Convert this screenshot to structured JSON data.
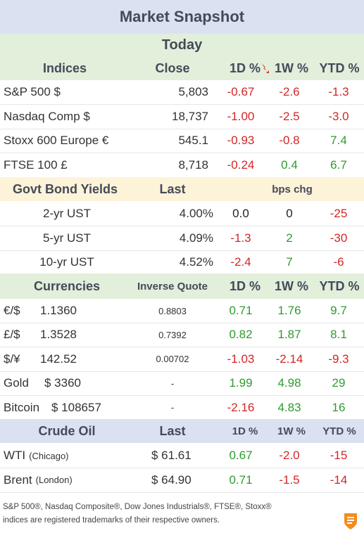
{
  "title": "Market Snapshot",
  "colors": {
    "negative": "#d42626",
    "positive": "#2f9b2f",
    "header_blue": "#dae1f1",
    "header_green": "#e1efdb",
    "header_yellow": "#fdf3d8"
  },
  "today_label": "Today",
  "indices": {
    "headers": {
      "name": "Indices",
      "close": "Close",
      "d1": "1D %",
      "w1": "1W %",
      "ytd": "YTD %"
    },
    "sort_icon": "sort-down-arrow-icon",
    "rows": [
      {
        "name": "S&P 500  $",
        "close": "5,803",
        "d1": "-0.67",
        "w1": "-2.6",
        "ytd": "-1.3"
      },
      {
        "name": "Nasdaq Comp  $",
        "close": "18,737",
        "d1": "-1.00",
        "w1": "-2.5",
        "ytd": "-3.0"
      },
      {
        "name": "Stoxx 600 Europe  €",
        "close": "545.1",
        "d1": "-0.93",
        "w1": "-0.8",
        "ytd": "7.4"
      },
      {
        "name": "FTSE 100  £",
        "close": "8,718",
        "d1": "-0.24",
        "w1": "0.4",
        "ytd": "6.7"
      }
    ]
  },
  "bonds": {
    "headers": {
      "name": "Govt Bond Yields",
      "last": "Last",
      "chg": "bps chg"
    },
    "rows": [
      {
        "name": "2-yr UST",
        "last": "4.00%",
        "d1": "0.0",
        "w1": "0",
        "ytd": "-25"
      },
      {
        "name": "5-yr UST",
        "last": "4.09%",
        "d1": "-1.3",
        "w1": "2",
        "ytd": "-30"
      },
      {
        "name": "10-yr UST",
        "last": "4.52%",
        "d1": "-2.4",
        "w1": "7",
        "ytd": "-6"
      }
    ]
  },
  "currencies": {
    "headers": {
      "name": "Currencies",
      "inverse": "Inverse Quote",
      "d1": "1D %",
      "w1": "1W %",
      "ytd": "YTD %"
    },
    "rows": [
      {
        "name": "€/$",
        "quote": "1.1360",
        "inverse": "0.8803",
        "d1": "0.71",
        "w1": "1.76",
        "ytd": "9.7"
      },
      {
        "name": "£/$",
        "quote": "1.3528",
        "inverse": "0.7392",
        "d1": "0.82",
        "w1": "1.87",
        "ytd": "8.1"
      },
      {
        "name": "$/¥",
        "quote": "142.52",
        "inverse": "0.00702",
        "d1": "-1.03",
        "w1": "-2.14",
        "ytd": "-9.3"
      },
      {
        "name": "Gold",
        "quote": "$ 3360",
        "inverse": "-",
        "d1": "1.99",
        "w1": "4.98",
        "ytd": "29"
      },
      {
        "name": "Bitcoin",
        "quote": "$ 108657",
        "inverse": "-",
        "d1": "-2.16",
        "w1": "4.83",
        "ytd": "16"
      }
    ]
  },
  "crude": {
    "headers": {
      "name": "Crude Oil",
      "last": "Last",
      "d1": "1D %",
      "w1": "1W %",
      "ytd": "YTD %"
    },
    "rows": [
      {
        "name": "WTI",
        "sub": "(Chicago)",
        "last": "$ 61.61",
        "d1": "0.67",
        "w1": "-2.0",
        "ytd": "-15"
      },
      {
        "name": "Brent",
        "sub": "(London)",
        "last": "$ 64.90",
        "d1": "0.71",
        "w1": "-1.5",
        "ytd": "-14"
      }
    ]
  },
  "footer": {
    "line1": "S&P 500®, Nasdaq Composite®, Dow Jones Industrials®, FTSE®, Stoxx®",
    "line2": "indices are registered trademarks of their respective owners.",
    "logo_icon": "brand-logo-icon"
  }
}
